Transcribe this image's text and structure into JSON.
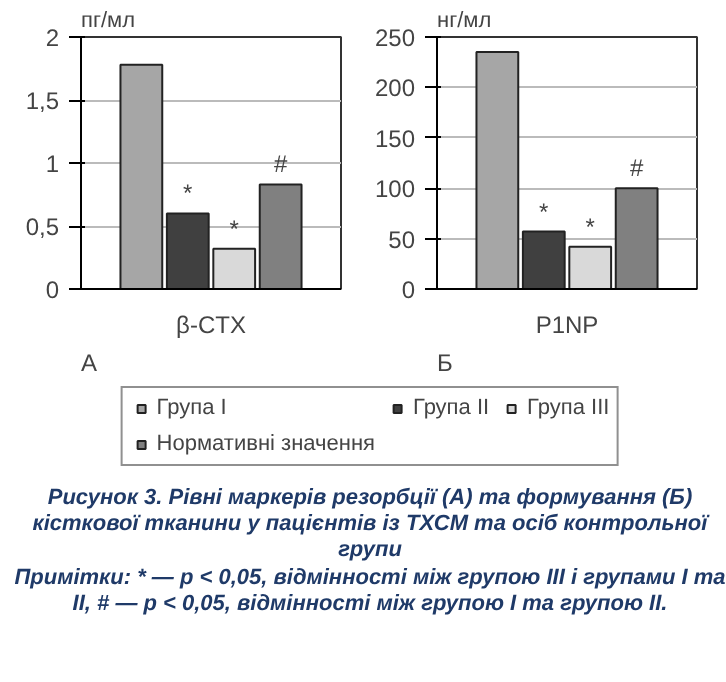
{
  "chart_data": [
    {
      "type": "bar",
      "ylabel": "пг/мл",
      "categories": [
        "β-CTX"
      ],
      "ylim": [
        0,
        2
      ],
      "yticks": [
        0,
        {
          "value": 0.5,
          "label": "0,5"
        },
        1,
        {
          "value": 1.5,
          "label": "1,5"
        },
        2
      ],
      "grid": "y",
      "legend": "bottom",
      "series": [
        {
          "name": "Група I",
          "color": "#a6a6a6",
          "values": [
            1.78
          ]
        },
        {
          "name": "Група II",
          "color": "#404040",
          "values": [
            0.6
          ],
          "value_labels": [
            "*"
          ]
        },
        {
          "name": "Група III",
          "color": "#d9d9d9",
          "values": [
            0.32
          ],
          "value_labels": [
            "*"
          ]
        },
        {
          "name": "Нормативні значення",
          "color": "#808080",
          "values": [
            0.83
          ],
          "value_labels": [
            "#"
          ]
        }
      ],
      "annotations": [
        "А"
      ]
    },
    {
      "type": "bar",
      "ylabel": "нг/мл",
      "categories": [
        "P1NP"
      ],
      "ylim": [
        0,
        250
      ],
      "yticks": [
        0,
        50,
        100,
        150,
        200,
        250
      ],
      "grid": "y",
      "series": [
        {
          "color": "#a6a6a6",
          "values": [
            235
          ]
        },
        {
          "color": "#404040",
          "values": [
            57
          ],
          "value_labels": [
            "*"
          ]
        },
        {
          "color": "#d9d9d9",
          "values": [
            42
          ],
          "value_labels": [
            "*"
          ]
        },
        {
          "color": "#808080",
          "values": [
            100
          ],
          "value_labels": [
            "#"
          ]
        }
      ],
      "annotations": [
        "Б",
        "Рисунок 3. Рівні маркерів резорбції (А) та формування (Б) кісткової тканини у пацієнтів із ТХСМ та осіб контрольної групи",
        "Примітки: * — p < 0,05, відмінності між групою III і групами I та II, # — p < 0,05, відмінності між групою I та групою II."
      ]
    }
  ]
}
